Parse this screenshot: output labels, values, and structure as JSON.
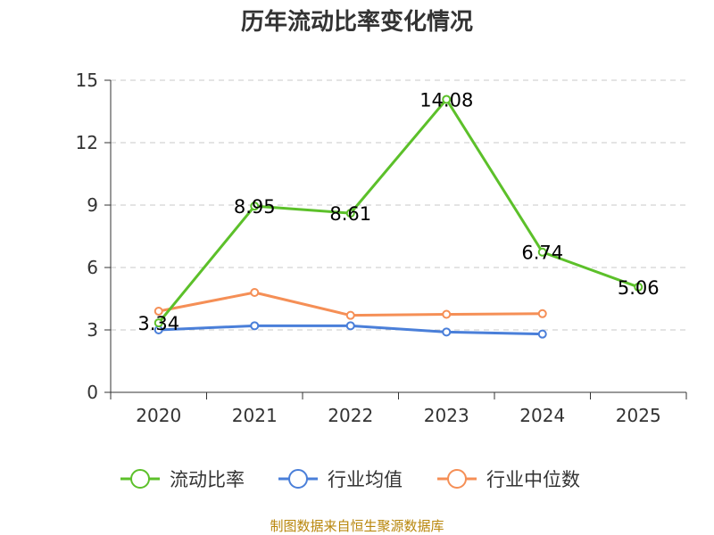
{
  "chart_data": {
    "type": "line",
    "title": "历年流动比率变化情况",
    "categories": [
      "2020",
      "2021",
      "2022",
      "2023",
      "2024",
      "2025"
    ],
    "ylim": [
      0,
      15
    ],
    "yticks": [
      0,
      3,
      6,
      9,
      12,
      15
    ],
    "grid": true,
    "legend_position": "bottom",
    "series": [
      {
        "name": "流动比率",
        "color": "#5cc02a",
        "values": [
          3.34,
          8.95,
          8.61,
          14.08,
          6.74,
          5.06
        ],
        "labels": [
          "3.34",
          "8.95",
          "8.61",
          "14.08",
          "6.74",
          "5.06"
        ],
        "show_labels": true
      },
      {
        "name": "行业均值",
        "color": "#4a7fd9",
        "values": [
          3.0,
          3.2,
          3.2,
          2.9,
          2.8,
          null
        ],
        "show_labels": false
      },
      {
        "name": "行业中位数",
        "color": "#f58f56",
        "values": [
          3.9,
          4.8,
          3.7,
          3.75,
          3.78,
          null
        ],
        "show_labels": false
      }
    ],
    "source": "制图数据来自恒生聚源数据库"
  }
}
